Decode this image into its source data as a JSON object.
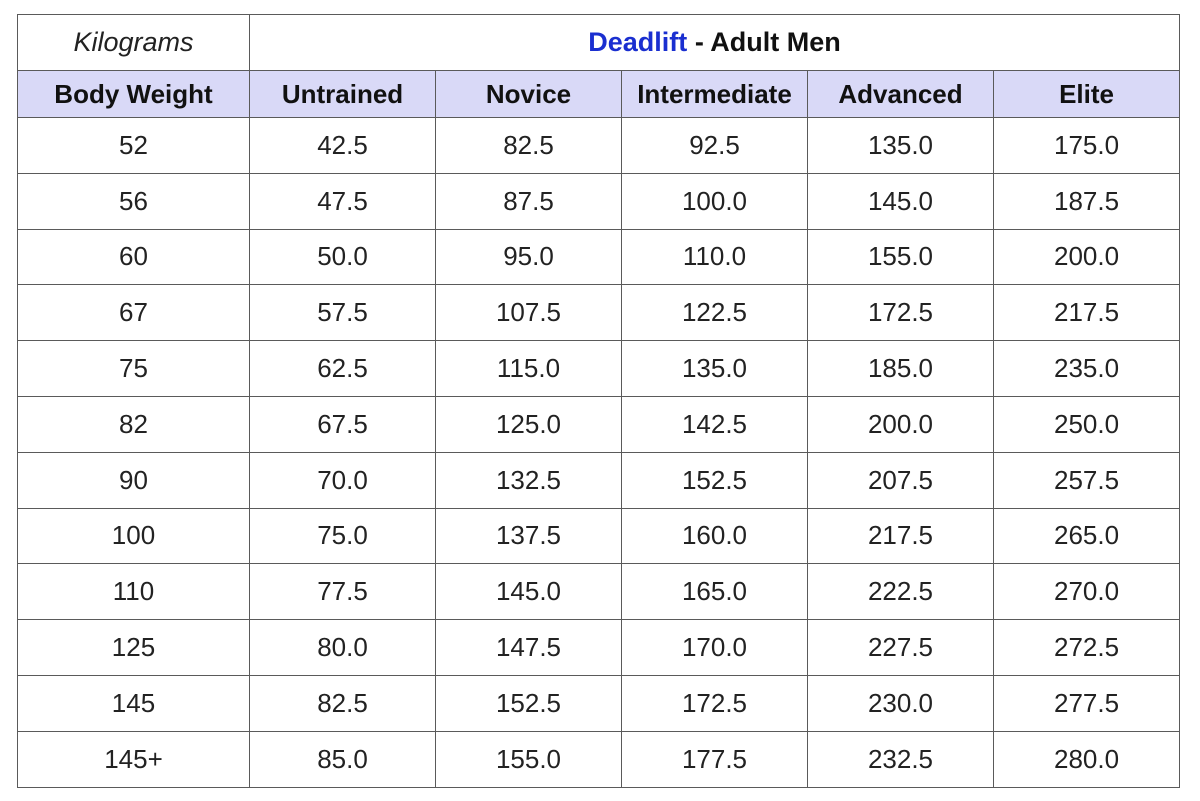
{
  "corner": "Kilograms",
  "title": {
    "lift": "Deadlift",
    "rest": "- Adult Men"
  },
  "columns": [
    "Body Weight",
    "Untrained",
    "Novice",
    "Intermediate",
    "Advanced",
    "Elite"
  ],
  "rows": [
    [
      "52",
      "42.5",
      "82.5",
      "92.5",
      "135.0",
      "175.0"
    ],
    [
      "56",
      "47.5",
      "87.5",
      "100.0",
      "145.0",
      "187.5"
    ],
    [
      "60",
      "50.0",
      "95.0",
      "110.0",
      "155.0",
      "200.0"
    ],
    [
      "67",
      "57.5",
      "107.5",
      "122.5",
      "172.5",
      "217.5"
    ],
    [
      "75",
      "62.5",
      "115.0",
      "135.0",
      "185.0",
      "235.0"
    ],
    [
      "82",
      "67.5",
      "125.0",
      "142.5",
      "200.0",
      "250.0"
    ],
    [
      "90",
      "70.0",
      "132.5",
      "152.5",
      "207.5",
      "257.5"
    ],
    [
      "100",
      "75.0",
      "137.5",
      "160.0",
      "217.5",
      "265.0"
    ],
    [
      "110",
      "77.5",
      "145.0",
      "165.0",
      "222.5",
      "270.0"
    ],
    [
      "125",
      "80.0",
      "147.5",
      "170.0",
      "227.5",
      "272.5"
    ],
    [
      "145",
      "82.5",
      "152.5",
      "172.5",
      "230.0",
      "277.5"
    ],
    [
      "145+",
      "85.0",
      "155.0",
      "177.5",
      "232.5",
      "280.0"
    ]
  ]
}
